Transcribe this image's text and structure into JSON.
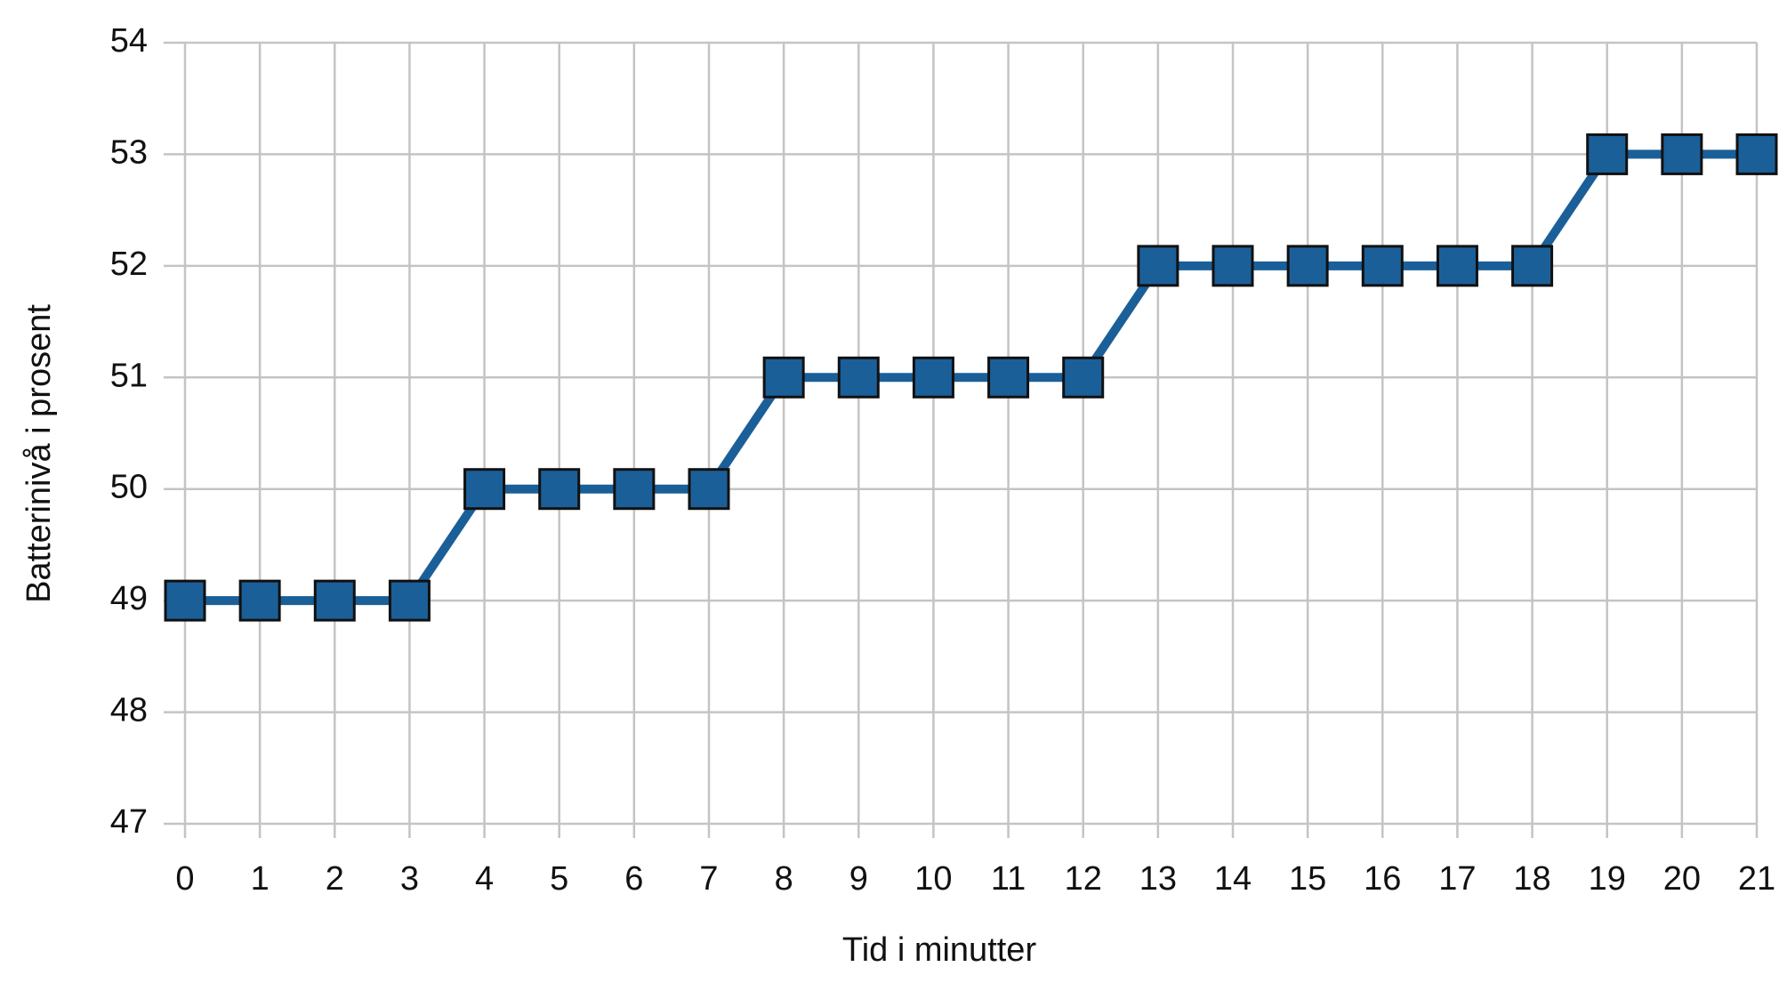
{
  "chart_data": {
    "type": "line",
    "x_label": "Tid i minutter",
    "y_label": "Batterinivå i prosent",
    "x": [
      0,
      1,
      2,
      3,
      4,
      5,
      6,
      7,
      8,
      9,
      10,
      11,
      12,
      13,
      14,
      15,
      16,
      17,
      18,
      19,
      20,
      21
    ],
    "series": [
      {
        "name": null,
        "color": "#1b5f99",
        "values": [
          49,
          49,
          49,
          49,
          50,
          50,
          50,
          50,
          51,
          51,
          51,
          51,
          51,
          52,
          52,
          52,
          52,
          52,
          52,
          53,
          53,
          53
        ]
      }
    ],
    "xlim": [
      0,
      21
    ],
    "xticks": [
      0,
      1,
      2,
      3,
      4,
      5,
      6,
      7,
      8,
      9,
      10,
      11,
      12,
      13,
      14,
      15,
      16,
      17,
      18,
      19,
      20,
      21
    ],
    "ylim": [
      47,
      54
    ],
    "yticks": [
      47,
      48,
      49,
      50,
      51,
      52,
      53,
      54
    ],
    "grid": true
  }
}
